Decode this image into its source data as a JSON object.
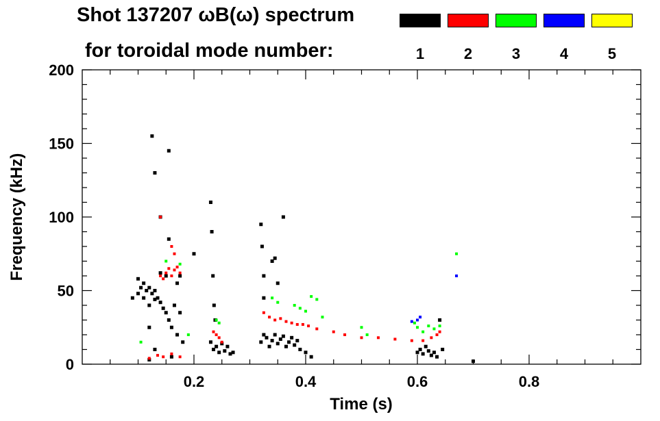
{
  "chart_data": {
    "type": "scatter",
    "title_line1": "Shot 137207 ωB(ω) spectrum",
    "title_line2": "for toroidal mode number:",
    "xlabel": "Time (s)",
    "ylabel": "Frequency (kHz)",
    "xlim": [
      0.0,
      1.0
    ],
    "ylim": [
      0,
      200
    ],
    "x_ticks": [
      0.2,
      0.4,
      0.6,
      0.8
    ],
    "x_tick_labels": [
      "0.2",
      "0.4",
      "0.6",
      "0.8"
    ],
    "y_ticks": [
      0,
      50,
      100,
      150,
      200
    ],
    "y_tick_labels": [
      "0",
      "50",
      "100",
      "150",
      "200"
    ],
    "legend": [
      {
        "mode": "1",
        "color": "#000000"
      },
      {
        "mode": "2",
        "color": "#ff0000"
      },
      {
        "mode": "3",
        "color": "#00ff00"
      },
      {
        "mode": "4",
        "color": "#0000ff"
      },
      {
        "mode": "5",
        "color": "#ffff00"
      }
    ],
    "series": [
      {
        "name": "n=1",
        "color": "#000000",
        "points": [
          {
            "x": 0.09,
            "y": 45
          },
          {
            "x": 0.1,
            "y": 48
          },
          {
            "x": 0.1,
            "y": 58
          },
          {
            "x": 0.105,
            "y": 52
          },
          {
            "x": 0.11,
            "y": 55
          },
          {
            "x": 0.11,
            "y": 45
          },
          {
            "x": 0.115,
            "y": 50
          },
          {
            "x": 0.12,
            "y": 52
          },
          {
            "x": 0.12,
            "y": 40
          },
          {
            "x": 0.125,
            "y": 48
          },
          {
            "x": 0.13,
            "y": 50
          },
          {
            "x": 0.13,
            "y": 44
          },
          {
            "x": 0.135,
            "y": 45
          },
          {
            "x": 0.14,
            "y": 42
          },
          {
            "x": 0.14,
            "y": 62
          },
          {
            "x": 0.145,
            "y": 38
          },
          {
            "x": 0.15,
            "y": 35
          },
          {
            "x": 0.155,
            "y": 30
          },
          {
            "x": 0.16,
            "y": 25
          },
          {
            "x": 0.165,
            "y": 40
          },
          {
            "x": 0.17,
            "y": 20
          },
          {
            "x": 0.175,
            "y": 35
          },
          {
            "x": 0.18,
            "y": 15
          },
          {
            "x": 0.2,
            "y": 75
          },
          {
            "x": 0.125,
            "y": 155
          },
          {
            "x": 0.13,
            "y": 130
          },
          {
            "x": 0.14,
            "y": 100
          },
          {
            "x": 0.155,
            "y": 85
          },
          {
            "x": 0.155,
            "y": 145
          },
          {
            "x": 0.15,
            "y": 60
          },
          {
            "x": 0.17,
            "y": 55
          },
          {
            "x": 0.12,
            "y": 25
          },
          {
            "x": 0.13,
            "y": 10
          },
          {
            "x": 0.16,
            "y": 5
          },
          {
            "x": 0.175,
            "y": 60
          },
          {
            "x": 0.12,
            "y": 3
          },
          {
            "x": 0.23,
            "y": 15
          },
          {
            "x": 0.235,
            "y": 10
          },
          {
            "x": 0.24,
            "y": 12
          },
          {
            "x": 0.245,
            "y": 8
          },
          {
            "x": 0.25,
            "y": 14
          },
          {
            "x": 0.255,
            "y": 9
          },
          {
            "x": 0.26,
            "y": 12
          },
          {
            "x": 0.265,
            "y": 7
          },
          {
            "x": 0.27,
            "y": 8
          },
          {
            "x": 0.23,
            "y": 110
          },
          {
            "x": 0.232,
            "y": 90
          },
          {
            "x": 0.234,
            "y": 60
          },
          {
            "x": 0.236,
            "y": 40
          },
          {
            "x": 0.238,
            "y": 30
          },
          {
            "x": 0.32,
            "y": 15
          },
          {
            "x": 0.325,
            "y": 20
          },
          {
            "x": 0.33,
            "y": 18
          },
          {
            "x": 0.335,
            "y": 12
          },
          {
            "x": 0.34,
            "y": 16
          },
          {
            "x": 0.345,
            "y": 20
          },
          {
            "x": 0.35,
            "y": 14
          },
          {
            "x": 0.355,
            "y": 17
          },
          {
            "x": 0.36,
            "y": 19
          },
          {
            "x": 0.365,
            "y": 12
          },
          {
            "x": 0.37,
            "y": 15
          },
          {
            "x": 0.375,
            "y": 18
          },
          {
            "x": 0.38,
            "y": 13
          },
          {
            "x": 0.385,
            "y": 16
          },
          {
            "x": 0.39,
            "y": 10
          },
          {
            "x": 0.4,
            "y": 8
          },
          {
            "x": 0.41,
            "y": 5
          },
          {
            "x": 0.34,
            "y": 70
          },
          {
            "x": 0.345,
            "y": 72
          },
          {
            "x": 0.32,
            "y": 95
          },
          {
            "x": 0.322,
            "y": 80
          },
          {
            "x": 0.325,
            "y": 60
          },
          {
            "x": 0.325,
            "y": 45
          },
          {
            "x": 0.35,
            "y": 55
          },
          {
            "x": 0.36,
            "y": 100
          },
          {
            "x": 0.6,
            "y": 8
          },
          {
            "x": 0.605,
            "y": 10
          },
          {
            "x": 0.61,
            "y": 7
          },
          {
            "x": 0.615,
            "y": 12
          },
          {
            "x": 0.62,
            "y": 9
          },
          {
            "x": 0.625,
            "y": 6
          },
          {
            "x": 0.63,
            "y": 8
          },
          {
            "x": 0.635,
            "y": 5
          },
          {
            "x": 0.64,
            "y": 30
          },
          {
            "x": 0.645,
            "y": 10
          },
          {
            "x": 0.7,
            "y": 2
          }
        ]
      },
      {
        "name": "n=2",
        "color": "#ff0000",
        "points": [
          {
            "x": 0.14,
            "y": 60
          },
          {
            "x": 0.145,
            "y": 58
          },
          {
            "x": 0.15,
            "y": 62
          },
          {
            "x": 0.155,
            "y": 65
          },
          {
            "x": 0.16,
            "y": 60
          },
          {
            "x": 0.165,
            "y": 64
          },
          {
            "x": 0.17,
            "y": 66
          },
          {
            "x": 0.175,
            "y": 62
          },
          {
            "x": 0.16,
            "y": 80
          },
          {
            "x": 0.165,
            "y": 75
          },
          {
            "x": 0.12,
            "y": 4
          },
          {
            "x": 0.135,
            "y": 6
          },
          {
            "x": 0.145,
            "y": 5
          },
          {
            "x": 0.16,
            "y": 7
          },
          {
            "x": 0.175,
            "y": 5
          },
          {
            "x": 0.14,
            "y": 100
          },
          {
            "x": 0.235,
            "y": 22
          },
          {
            "x": 0.24,
            "y": 20
          },
          {
            "x": 0.245,
            "y": 18
          },
          {
            "x": 0.25,
            "y": 15
          },
          {
            "x": 0.325,
            "y": 35
          },
          {
            "x": 0.335,
            "y": 32
          },
          {
            "x": 0.345,
            "y": 30
          },
          {
            "x": 0.355,
            "y": 31
          },
          {
            "x": 0.365,
            "y": 29
          },
          {
            "x": 0.375,
            "y": 28
          },
          {
            "x": 0.385,
            "y": 27
          },
          {
            "x": 0.395,
            "y": 27
          },
          {
            "x": 0.405,
            "y": 26
          },
          {
            "x": 0.42,
            "y": 24
          },
          {
            "x": 0.45,
            "y": 22
          },
          {
            "x": 0.47,
            "y": 20
          },
          {
            "x": 0.5,
            "y": 18
          },
          {
            "x": 0.53,
            "y": 18
          },
          {
            "x": 0.56,
            "y": 17
          },
          {
            "x": 0.59,
            "y": 16
          },
          {
            "x": 0.61,
            "y": 16
          },
          {
            "x": 0.625,
            "y": 18
          },
          {
            "x": 0.635,
            "y": 20
          },
          {
            "x": 0.64,
            "y": 22
          }
        ]
      },
      {
        "name": "n=3",
        "color": "#00ff00",
        "points": [
          {
            "x": 0.15,
            "y": 70
          },
          {
            "x": 0.175,
            "y": 68
          },
          {
            "x": 0.105,
            "y": 15
          },
          {
            "x": 0.19,
            "y": 20
          },
          {
            "x": 0.24,
            "y": 30
          },
          {
            "x": 0.245,
            "y": 28
          },
          {
            "x": 0.34,
            "y": 45
          },
          {
            "x": 0.35,
            "y": 42
          },
          {
            "x": 0.38,
            "y": 40
          },
          {
            "x": 0.39,
            "y": 38
          },
          {
            "x": 0.4,
            "y": 36
          },
          {
            "x": 0.42,
            "y": 44
          },
          {
            "x": 0.41,
            "y": 46
          },
          {
            "x": 0.43,
            "y": 32
          },
          {
            "x": 0.5,
            "y": 25
          },
          {
            "x": 0.51,
            "y": 20
          },
          {
            "x": 0.595,
            "y": 28
          },
          {
            "x": 0.6,
            "y": 25
          },
          {
            "x": 0.61,
            "y": 22
          },
          {
            "x": 0.62,
            "y": 26
          },
          {
            "x": 0.63,
            "y": 24
          },
          {
            "x": 0.64,
            "y": 26
          },
          {
            "x": 0.67,
            "y": 75
          }
        ]
      },
      {
        "name": "n=4",
        "color": "#0000ff",
        "points": [
          {
            "x": 0.6,
            "y": 30
          },
          {
            "x": 0.605,
            "y": 32
          },
          {
            "x": 0.59,
            "y": 29
          },
          {
            "x": 0.67,
            "y": 60
          }
        ]
      },
      {
        "name": "n=5",
        "color": "#ffff00",
        "points": []
      }
    ]
  }
}
